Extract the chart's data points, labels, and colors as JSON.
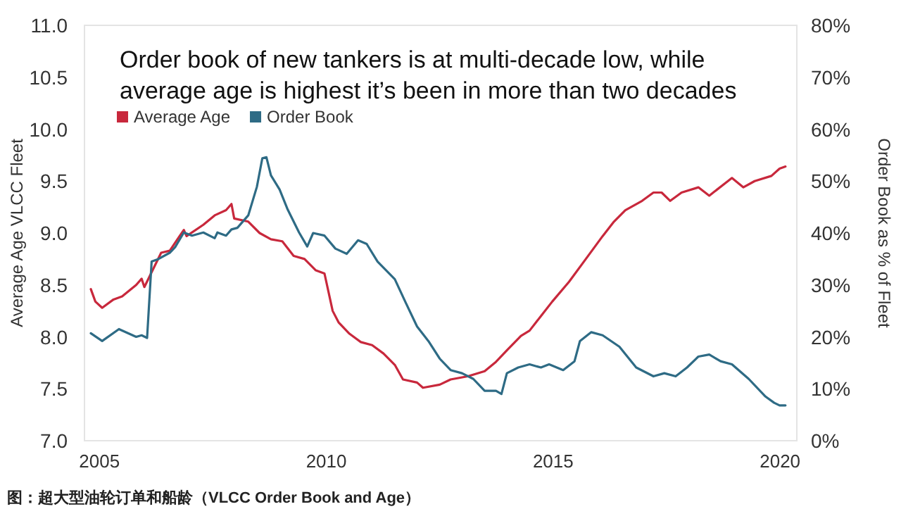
{
  "chart_data": {
    "type": "line",
    "title": "Order book of new tankers is at multi-decade low, while\naverage age is highest it’s been in more than two decades",
    "ylabel": "Average Age VLCC Fleet",
    "y2label": "Order Book as % of Fleet",
    "annotations": [
      "图：超大型油轮订单和船龄（VLCC Order Book and Age）"
    ],
    "xlim": [
      2004.67,
      2020.37
    ],
    "xticks": [
      2005,
      2010,
      2015,
      2020
    ],
    "ylim": [
      7,
      11
    ],
    "yticks": [
      {
        "value": 7,
        "label": "7.0"
      },
      {
        "value": 7.5,
        "label": "7.5"
      },
      {
        "value": 8,
        "label": "8.0"
      },
      {
        "value": 8.5,
        "label": "8.5"
      },
      {
        "value": 9,
        "label": "9.0"
      },
      {
        "value": 9.5,
        "label": "9.5"
      },
      {
        "value": 10,
        "label": "10.0"
      },
      {
        "value": 10.5,
        "label": "10.5"
      },
      {
        "value": 11,
        "label": "11.0"
      }
    ],
    "y2lim": [
      0,
      80
    ],
    "y2ticks": [
      {
        "value": 0,
        "label": "0%"
      },
      {
        "value": 10,
        "label": "10%"
      },
      {
        "value": 20,
        "label": "20%"
      },
      {
        "value": 30,
        "label": "30%"
      },
      {
        "value": 40,
        "label": "40%"
      },
      {
        "value": 50,
        "label": "50%"
      },
      {
        "value": 60,
        "label": "60%"
      },
      {
        "value": 70,
        "label": "70%"
      },
      {
        "value": 80,
        "label": "80%"
      }
    ],
    "grid": false,
    "legend": "top left",
    "line_style": "solid",
    "marker": "none",
    "series": [
      {
        "name": "Average Age",
        "color": "#c8283c",
        "x": [
          2004.81,
          2004.91,
          2005.06,
          2005.31,
          2005.5,
          2005.81,
          2005.93,
          2005.99,
          2006.36,
          2006.55,
          2006.86,
          2006.92,
          2007.29,
          2007.54,
          2007.79,
          2007.91,
          2007.97,
          2008.28,
          2008.53,
          2008.78,
          2009.03,
          2009.28,
          2009.52,
          2009.77,
          2009.96,
          2010.14,
          2010.27,
          2010.51,
          2010.76,
          2011.01,
          2011.26,
          2011.51,
          2011.69,
          2012.0,
          2012.13,
          2012.5,
          2012.74,
          2013.12,
          2013.49,
          2013.74,
          2013.98,
          2014.29,
          2014.48,
          2014.73,
          2014.98,
          2015.35,
          2015.72,
          2016.09,
          2016.34,
          2016.59,
          2016.96,
          2017.21,
          2017.39,
          2017.58,
          2017.83,
          2018.2,
          2018.44,
          2018.94,
          2019.19,
          2019.44,
          2019.81,
          2019.99,
          2020.12
        ],
        "values": [
          8.46,
          8.34,
          8.28,
          8.36,
          8.39,
          8.5,
          8.56,
          8.48,
          8.81,
          8.83,
          9.03,
          8.97,
          9.08,
          9.17,
          9.22,
          9.28,
          9.14,
          9.11,
          9.0,
          8.94,
          8.92,
          8.78,
          8.75,
          8.64,
          8.61,
          8.25,
          8.14,
          8.03,
          7.95,
          7.92,
          7.84,
          7.73,
          7.59,
          7.56,
          7.51,
          7.54,
          7.59,
          7.62,
          7.67,
          7.76,
          7.87,
          8.01,
          8.06,
          8.2,
          8.34,
          8.53,
          8.75,
          8.97,
          9.11,
          9.22,
          9.31,
          9.39,
          9.39,
          9.31,
          9.39,
          9.44,
          9.36,
          9.53,
          9.44,
          9.5,
          9.55,
          9.62,
          9.64
        ]
      },
      {
        "name": "Order Book",
        "color": "#2e6b85",
        "axis": "y2",
        "x": [
          2004.81,
          2005.06,
          2005.43,
          2005.81,
          2005.93,
          2006.05,
          2006.15,
          2006.3,
          2006.55,
          2006.67,
          2006.86,
          2007.04,
          2007.29,
          2007.54,
          2007.6,
          2007.79,
          2007.91,
          2008.04,
          2008.28,
          2008.47,
          2008.59,
          2008.68,
          2008.78,
          2008.97,
          2009.15,
          2009.4,
          2009.58,
          2009.71,
          2009.96,
          2010.2,
          2010.45,
          2010.7,
          2010.89,
          2011.13,
          2011.51,
          2011.75,
          2012.0,
          2012.25,
          2012.5,
          2012.74,
          2012.99,
          2013.24,
          2013.49,
          2013.74,
          2013.86,
          2013.98,
          2014.23,
          2014.48,
          2014.73,
          2014.91,
          2015.22,
          2015.47,
          2015.59,
          2015.84,
          2016.09,
          2016.46,
          2016.83,
          2017.21,
          2017.45,
          2017.7,
          2017.95,
          2018.2,
          2018.44,
          2018.69,
          2018.94,
          2019.31,
          2019.68,
          2019.87,
          2019.99,
          2020.12
        ],
        "values": [
          20.7,
          19.2,
          21.5,
          20,
          20.3,
          19.8,
          34.5,
          35,
          36.2,
          37.3,
          40.1,
          39.5,
          40.1,
          39,
          40.1,
          39.5,
          40.7,
          41,
          43.4,
          48.9,
          54.4,
          54.6,
          51.1,
          48.4,
          44.5,
          40.1,
          37.4,
          40,
          39.5,
          37,
          36,
          38.6,
          37.9,
          34.5,
          31.1,
          26.6,
          22,
          19.2,
          15.8,
          13.6,
          13,
          11.9,
          9.6,
          9.6,
          9,
          13,
          14.1,
          14.7,
          14.1,
          14.7,
          13.6,
          15.3,
          19.2,
          20.9,
          20.3,
          18.1,
          14.1,
          12.4,
          13,
          12.4,
          14.1,
          16.2,
          16.6,
          15.3,
          14.7,
          11.9,
          8.5,
          7.3,
          6.8,
          6.8
        ]
      }
    ]
  }
}
